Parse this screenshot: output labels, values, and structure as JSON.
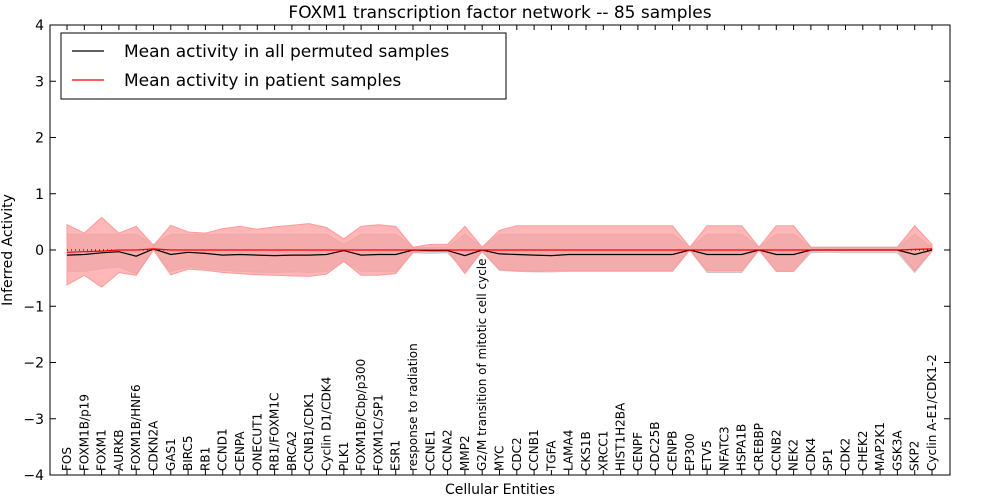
{
  "chart_data": {
    "type": "line",
    "title": "FOXM1 transcription factor network -- 85 samples",
    "xlabel": "Cellular Entities",
    "ylabel": "Inferred Activity",
    "ylim": [
      -4,
      4
    ],
    "yticks": [
      -4,
      -3,
      -2,
      -1,
      0,
      1,
      2,
      3,
      4
    ],
    "grid": false,
    "legend_position": "top-left",
    "categories": [
      "FOS",
      "FOXM1B/p19",
      "FOXM1",
      "AURKB",
      "FOXM1B/HNF6",
      "CDKN2A",
      "GAS1",
      "BIRC5",
      "RB1",
      "CCND1",
      "CENPA",
      "ONECUT1",
      "RB1/FOXM1C",
      "BRCA2",
      "CCNB1/CDK1",
      "Cyclin D1/CDK4",
      "PLK1",
      "FOXM1B/Cbp/p300",
      "FOXM1C/SP1",
      "ESR1",
      "response to radiation",
      "CCNE1",
      "CCNA2",
      "MMP2",
      "G2/M transition of mitotic cell cycle",
      "MYC",
      "CDC2",
      "CCNB1",
      "TGFA",
      "LAMA4",
      "CKS1B",
      "XRCC1",
      "HIST1H2BA",
      "CENPF",
      "CDC25B",
      "CENPB",
      "EP300",
      "ETV5",
      "NFATC3",
      "HSPA1B",
      "CREBBP",
      "CCNB2",
      "NEK2",
      "CDK4",
      "SP1",
      "CDK2",
      "CHEK2",
      "MAP2K1",
      "GSK3A",
      "SKP2",
      "Cyclin A-E1/CDK1-2"
    ],
    "series": [
      {
        "name": "Mean activity in all permuted samples",
        "color": "#000000",
        "values": [
          -0.09,
          -0.08,
          -0.05,
          -0.03,
          -0.11,
          0.02,
          -0.08,
          -0.04,
          -0.06,
          -0.09,
          -0.08,
          -0.09,
          -0.1,
          -0.09,
          -0.09,
          -0.08,
          -0.01,
          -0.09,
          -0.08,
          -0.08,
          0.0,
          -0.01,
          -0.01,
          -0.1,
          0.0,
          -0.07,
          -0.08,
          -0.09,
          -0.1,
          -0.08,
          -0.08,
          -0.08,
          -0.08,
          -0.08,
          -0.08,
          -0.08,
          0.0,
          -0.08,
          -0.08,
          -0.08,
          0.0,
          -0.08,
          -0.08,
          0.0,
          0.0,
          0.0,
          0.0,
          0.0,
          0.0,
          -0.08,
          0.0
        ],
        "band": {
          "color": "#c8c8c8",
          "lower": [
            -0.38,
            -0.38,
            -0.33,
            -0.3,
            -0.42,
            0.0,
            -0.38,
            -0.3,
            -0.33,
            -0.36,
            -0.38,
            -0.39,
            -0.4,
            -0.39,
            -0.4,
            -0.38,
            -0.2,
            -0.38,
            -0.38,
            -0.38,
            -0.05,
            -0.06,
            -0.05,
            -0.38,
            -0.03,
            -0.36,
            -0.38,
            -0.39,
            -0.39,
            -0.38,
            -0.38,
            -0.38,
            -0.38,
            -0.38,
            -0.38,
            -0.38,
            0.0,
            -0.4,
            -0.4,
            -0.4,
            0.0,
            -0.38,
            -0.38,
            -0.05,
            -0.04,
            -0.05,
            -0.05,
            -0.05,
            -0.05,
            -0.4,
            -0.02
          ],
          "upper": [
            0.28,
            0.28,
            0.28,
            0.28,
            0.28,
            0.1,
            0.28,
            0.28,
            0.28,
            0.28,
            0.28,
            0.28,
            0.28,
            0.28,
            0.28,
            0.28,
            0.1,
            0.28,
            0.28,
            0.28,
            0.05,
            0.05,
            0.05,
            0.28,
            0.05,
            0.28,
            0.28,
            0.28,
            0.28,
            0.28,
            0.28,
            0.28,
            0.28,
            0.28,
            0.28,
            0.28,
            0.05,
            0.28,
            0.28,
            0.28,
            0.05,
            0.28,
            0.28,
            0.05,
            0.05,
            0.05,
            0.05,
            0.05,
            0.05,
            0.28,
            0.05
          ]
        }
      },
      {
        "name": "Mean activity in patient samples",
        "color": "#ff0000",
        "values": [
          -0.04,
          -0.03,
          -0.02,
          0.0,
          0.0,
          0.02,
          0.0,
          0.0,
          0.0,
          0.0,
          0.0,
          0.0,
          0.0,
          0.0,
          0.0,
          0.0,
          0.0,
          0.0,
          0.0,
          0.0,
          0.0,
          0.0,
          0.0,
          0.0,
          0.0,
          0.0,
          0.0,
          0.0,
          0.0,
          0.0,
          0.0,
          0.0,
          0.0,
          0.0,
          0.0,
          0.0,
          0.0,
          0.0,
          0.0,
          0.0,
          0.0,
          0.0,
          0.0,
          0.0,
          0.0,
          0.0,
          0.0,
          0.0,
          0.0,
          0.01,
          0.02
        ],
        "band": {
          "color": "#ff9999",
          "lower": [
            -0.62,
            -0.45,
            -0.66,
            -0.4,
            -0.45,
            0.0,
            -0.44,
            -0.34,
            -0.36,
            -0.4,
            -0.42,
            -0.44,
            -0.45,
            -0.46,
            -0.47,
            -0.43,
            -0.2,
            -0.45,
            -0.45,
            -0.42,
            -0.04,
            -0.02,
            -0.01,
            -0.42,
            -0.02,
            -0.35,
            -0.37,
            -0.38,
            -0.37,
            -0.37,
            -0.37,
            -0.37,
            -0.37,
            -0.37,
            -0.37,
            -0.37,
            0.0,
            -0.37,
            -0.37,
            -0.37,
            0.0,
            -0.38,
            -0.38,
            0.0,
            0.0,
            0.0,
            0.0,
            0.0,
            0.0,
            -0.37,
            -0.02
          ],
          "upper": [
            0.45,
            0.3,
            0.58,
            0.3,
            0.42,
            0.08,
            0.44,
            0.32,
            0.3,
            0.38,
            0.42,
            0.37,
            0.41,
            0.44,
            0.47,
            0.4,
            0.2,
            0.42,
            0.45,
            0.42,
            0.05,
            0.1,
            0.1,
            0.42,
            0.05,
            0.35,
            0.43,
            0.43,
            0.43,
            0.43,
            0.43,
            0.43,
            0.43,
            0.43,
            0.43,
            0.43,
            0.05,
            0.43,
            0.43,
            0.43,
            0.05,
            0.43,
            0.43,
            0.05,
            0.05,
            0.05,
            0.05,
            0.05,
            0.05,
            0.43,
            0.1
          ]
        }
      }
    ],
    "reference_line": 0
  }
}
